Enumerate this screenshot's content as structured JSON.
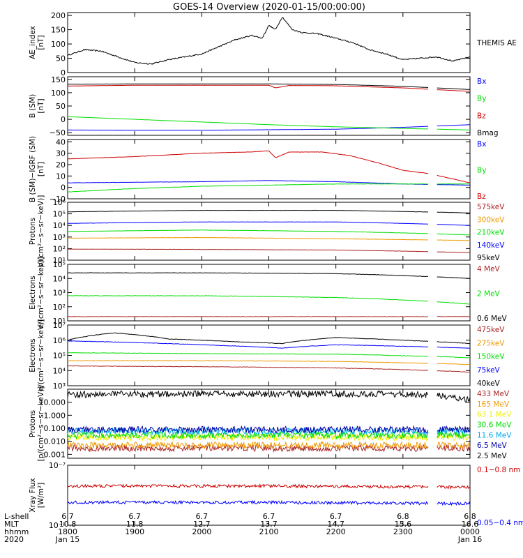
{
  "title": "GOES-14 Overview (2020-01-15/00:00:00)",
  "colors": {
    "black": "#000000",
    "blue": "#0000ff",
    "green": "#00dd00",
    "red": "#cc0000",
    "orange": "#ee9900",
    "yellow": "#eeee00",
    "cyan": "#00aaee",
    "purple": "#440088",
    "darkred": "#aa2222",
    "dkblue": "#0000aa"
  },
  "xaxis": {
    "rows": [
      {
        "label": "L-shell",
        "values": [
          "6.7",
          "6.7",
          "6.7",
          "6.7",
          "6.7",
          "6.8",
          "6.8"
        ]
      },
      {
        "label": "MLT",
        "values": [
          "10.8",
          "11.8",
          "12.7",
          "13.7",
          "14.7",
          "15.6",
          "16.6"
        ]
      },
      {
        "label": "hhmm",
        "values": [
          "1800",
          "1900",
          "2000",
          "2100",
          "2200",
          "2300",
          "0000"
        ]
      },
      {
        "label": "2020",
        "values": [
          "Jan 15",
          "",
          "",
          "",
          "",
          "",
          "Jan 16"
        ]
      }
    ],
    "time_range_hours": [
      18,
      24
    ],
    "data_gap_hours": [
      23.38,
      23.5
    ]
  },
  "chart_data": [
    {
      "type": "line",
      "id": "ae",
      "ylabel": [
        "AE_index",
        "[nT]"
      ],
      "scale": "linear",
      "ylim": [
        0,
        210
      ],
      "ticks": [
        0,
        50,
        100,
        150,
        200
      ],
      "tick_labels": [
        "0",
        "50",
        "100",
        "150",
        "200"
      ],
      "series": [
        {
          "name": "THEMIS AE",
          "color": "#000000",
          "x": [
            18.0,
            18.25,
            18.5,
            18.75,
            19.0,
            19.25,
            19.5,
            19.75,
            20.0,
            20.25,
            20.5,
            20.75,
            20.9,
            21.0,
            21.1,
            21.2,
            21.25,
            21.35,
            21.5,
            21.75,
            22.0,
            22.25,
            22.5,
            22.75,
            23.0,
            23.25,
            23.5,
            23.75,
            24.0
          ],
          "y": [
            60,
            80,
            75,
            55,
            35,
            30,
            45,
            55,
            65,
            90,
            115,
            130,
            120,
            165,
            150,
            195,
            180,
            150,
            140,
            135,
            120,
            105,
            80,
            65,
            45,
            50,
            55,
            40,
            55
          ]
        }
      ]
    },
    {
      "type": "line",
      "id": "b_sm",
      "ylabel": [
        "B  (SM)",
        "[nT]"
      ],
      "scale": "linear",
      "ylim": [
        -60,
        160
      ],
      "ticks": [
        -50,
        0,
        50,
        100,
        150
      ],
      "tick_labels": [
        "−50",
        "0",
        "50",
        "100",
        "150"
      ],
      "series": [
        {
          "name": "Bx",
          "color": "#0000ff",
          "x": [
            18,
            19,
            20,
            21,
            22,
            23,
            24
          ],
          "y": [
            -40,
            -41,
            -41,
            -39,
            -37,
            -30,
            -20
          ]
        },
        {
          "name": "By",
          "color": "#00dd00",
          "x": [
            18,
            19,
            20,
            21,
            22,
            23,
            24
          ],
          "y": [
            10,
            0,
            -10,
            -20,
            -28,
            -34,
            -40
          ]
        },
        {
          "name": "Bz",
          "color": "#cc0000",
          "x": [
            18,
            19,
            20,
            21,
            21.1,
            21.3,
            22,
            23,
            24
          ],
          "y": [
            125,
            128,
            128,
            128,
            118,
            127,
            126,
            118,
            105
          ]
        },
        {
          "name": "Bmag",
          "color": "#000000",
          "x": [
            18,
            19,
            20,
            21,
            22,
            23,
            24
          ],
          "y": [
            132,
            133,
            133,
            133,
            131,
            124,
            112
          ]
        }
      ]
    },
    {
      "type": "line",
      "id": "b_igrf",
      "ylabel": [
        "B (SM)−IGRF (SM)",
        "[nT]"
      ],
      "scale": "linear",
      "ylim": [
        -10,
        42
      ],
      "ticks": [
        -10,
        0,
        10,
        20,
        30,
        40
      ],
      "tick_labels": [
        "−10",
        "0",
        "10",
        "20",
        "30",
        "40"
      ],
      "series": [
        {
          "name": "Bx",
          "color": "#0000ff",
          "x": [
            18,
            19,
            20,
            21,
            22,
            23,
            24
          ],
          "y": [
            4,
            4.5,
            5,
            6,
            5,
            3,
            2
          ]
        },
        {
          "name": "By",
          "color": "#00dd00",
          "x": [
            18,
            19,
            20,
            21,
            22,
            23,
            24
          ],
          "y": [
            -4,
            -1,
            1,
            2,
            3,
            3,
            3
          ]
        },
        {
          "name": "Bz",
          "color": "#cc0000",
          "x": [
            18,
            19,
            20,
            20.7,
            21.0,
            21.1,
            21.3,
            21.8,
            22.2,
            22.6,
            23,
            23.4,
            24
          ],
          "y": [
            25,
            27,
            30,
            31,
            32,
            26,
            31,
            31,
            28,
            22,
            15,
            12,
            4
          ]
        }
      ]
    },
    {
      "type": "line",
      "id": "protons_lo",
      "ylabel": [
        "Protons",
        "p/(cm²−s−sr−keV)]"
      ],
      "scale": "log",
      "ylim": [
        10,
        1000000
      ],
      "ticks": [
        10,
        100,
        1000,
        10000,
        100000,
        1000000
      ],
      "tick_labels": [
        "10¹",
        "10²",
        "10³",
        "10⁴",
        "10⁵",
        "10⁶"
      ],
      "series": [
        {
          "name": "575keV",
          "color": "#aa2222",
          "x": [
            18,
            20,
            22,
            24
          ],
          "y": [
            90,
            85,
            75,
            45
          ]
        },
        {
          "name": "300keV",
          "color": "#ee9900",
          "x": [
            18,
            20,
            22,
            24
          ],
          "y": [
            800,
            900,
            700,
            500
          ]
        },
        {
          "name": "210keV",
          "color": "#00dd00",
          "x": [
            18,
            20,
            22,
            24
          ],
          "y": [
            3000,
            4000,
            3000,
            1500
          ]
        },
        {
          "name": "140keV",
          "color": "#0000ff",
          "x": [
            18,
            20,
            22,
            24
          ],
          "y": [
            15000,
            20000,
            20000,
            10000
          ]
        },
        {
          "name": "95keV",
          "color": "#000000",
          "x": [
            18,
            20,
            22,
            24
          ],
          "y": [
            150000,
            200000,
            200000,
            120000
          ]
        }
      ]
    },
    {
      "type": "line",
      "id": "electrons_hi",
      "ylabel": [
        "Electrons",
        "e/(cm²−s−sr−keV)]"
      ],
      "scale": "log",
      "ylim": [
        10,
        100000
      ],
      "ticks": [
        10,
        100,
        1000,
        10000,
        100000
      ],
      "tick_labels": [
        "10¹",
        "10²",
        "10³",
        "10⁴",
        "10⁵"
      ],
      "series": [
        {
          "name": "4 MeV",
          "color": "#aa2222",
          "x": [
            18,
            20,
            22,
            24
          ],
          "y": [
            20,
            20,
            20,
            20
          ]
        },
        {
          "name": "2 MeV",
          "color": "#00dd00",
          "x": [
            18,
            20,
            22,
            24
          ],
          "y": [
            600,
            600,
            450,
            150
          ]
        },
        {
          "name": "0.6 MeV",
          "color": "#000000",
          "x": [
            18,
            20,
            22,
            24
          ],
          "y": [
            25000,
            25000,
            22000,
            10000
          ]
        }
      ]
    },
    {
      "type": "line",
      "id": "electrons_lo",
      "ylabel": [
        "Electrons",
        "e/(cm²−s−sr−keV)]"
      ],
      "scale": "log",
      "ylim": [
        1000,
        10000000
      ],
      "ticks": [
        1000,
        10000,
        100000,
        1000000,
        10000000
      ],
      "tick_labels": [
        "10³",
        "10⁴",
        "10⁵",
        "10⁶",
        "10⁷"
      ],
      "series": [
        {
          "name": "475keV",
          "color": "#aa2222",
          "x": [
            18,
            20,
            22,
            24
          ],
          "y": [
            20000,
            18000,
            15000,
            8000
          ]
        },
        {
          "name": "275keV",
          "color": "#ee9900",
          "x": [
            18,
            20,
            22,
            24
          ],
          "y": [
            45000,
            45000,
            40000,
            25000
          ]
        },
        {
          "name": "150keV",
          "color": "#00dd00",
          "x": [
            18,
            20,
            22,
            24
          ],
          "y": [
            150000,
            130000,
            120000,
            70000
          ]
        },
        {
          "name": "75keV",
          "color": "#0000ff",
          "x": [
            18,
            19,
            20,
            21.2,
            22,
            24
          ],
          "y": [
            900000,
            700000,
            500000,
            300000,
            500000,
            300000
          ]
        },
        {
          "name": "40keV",
          "color": "#000000",
          "x": [
            18,
            18.7,
            19.5,
            20.5,
            21.2,
            22,
            23,
            24
          ],
          "y": [
            1000000,
            3000000,
            1200000,
            800000,
            600000,
            1500000,
            1000000,
            600000
          ]
        }
      ]
    },
    {
      "type": "line",
      "id": "protons_hi",
      "ylabel": [
        "Protons",
        "[p/(cm²−s−sr−keV)]"
      ],
      "scale": "log",
      "ylim": [
        0.0005,
        100
      ],
      "ticks": [
        0.001,
        0.01,
        0.1,
        1,
        10
      ],
      "tick_labels": [
        "0.001",
        "0.010",
        "0.100",
        "1.000",
        "10.000"
      ],
      "series": [
        {
          "name": "433 MeV",
          "color": "#aa2222",
          "x": [
            18,
            21,
            24
          ],
          "y": [
            0.003,
            0.003,
            0.003
          ]
        },
        {
          "name": "165 MeV",
          "color": "#ee9900",
          "x": [
            18,
            21,
            24
          ],
          "y": [
            0.005,
            0.005,
            0.005
          ]
        },
        {
          "name": "63.1 MeV",
          "color": "#eeee00",
          "x": [
            18,
            21,
            24
          ],
          "y": [
            0.02,
            0.02,
            0.02
          ]
        },
        {
          "name": "30.6 MeV",
          "color": "#00dd00",
          "x": [
            18,
            21,
            24
          ],
          "y": [
            0.03,
            0.03,
            0.03
          ]
        },
        {
          "name": "11.6 MeV",
          "color": "#00aaee",
          "x": [
            18,
            21,
            24
          ],
          "y": [
            0.06,
            0.06,
            0.06
          ]
        },
        {
          "name": "6.5 MeV",
          "color": "#0000aa",
          "x": [
            18,
            21,
            24
          ],
          "y": [
            0.08,
            0.08,
            0.08
          ]
        },
        {
          "name": "2.5 MeV",
          "color": "#000000",
          "x": [
            18,
            21,
            23.3,
            24
          ],
          "y": [
            40,
            45,
            40,
            15
          ]
        }
      ]
    },
    {
      "type": "line",
      "id": "xray",
      "ylabel": [
        "Xray Flux",
        "[W/m²]"
      ],
      "scale": "log",
      "ylim": [
        1e-08,
        1e-07
      ],
      "ticks": [
        1e-08,
        1e-07
      ],
      "tick_labels": [
        "10⁻⁸",
        "10⁻⁷"
      ],
      "series": [
        {
          "name": "0.1−0.8 nm",
          "color": "#cc0000",
          "x": [
            18,
            21,
            24
          ],
          "y": [
            4.5e-08,
            4.5e-08,
            4.3e-08
          ]
        },
        {
          "name": "0.05−0.4 nm",
          "color": "#0000ff",
          "x": [
            18,
            21,
            24
          ],
          "y": [
            2.4e-08,
            2.4e-08,
            2.3e-08
          ]
        }
      ]
    }
  ]
}
